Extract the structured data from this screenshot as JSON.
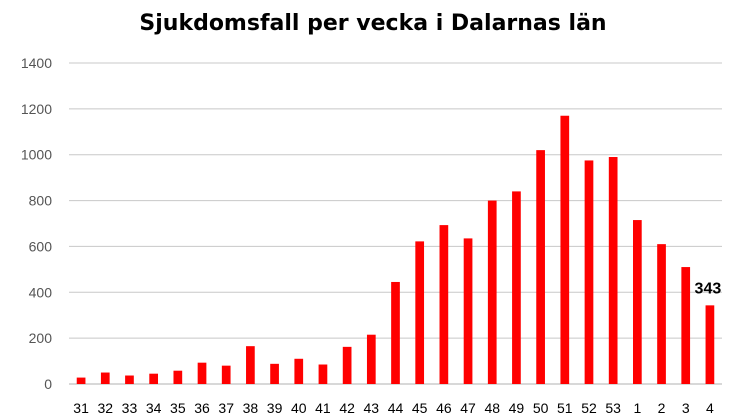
{
  "chart_data": {
    "type": "bar",
    "title": "Sjukdomsfall per vecka i Dalarnas län",
    "xlabel": "",
    "ylabel": "",
    "categories": [
      "31",
      "32",
      "33",
      "34",
      "35",
      "36",
      "37",
      "38",
      "39",
      "40",
      "41",
      "42",
      "43",
      "44",
      "45",
      "46",
      "47",
      "48",
      "49",
      "50",
      "51",
      "52",
      "53",
      "1",
      "2",
      "3",
      "4"
    ],
    "series": [
      {
        "values": [
          28,
          50,
          37,
          45,
          58,
          93,
          80,
          165,
          88,
          110,
          85,
          162,
          215,
          445,
          622,
          693,
          635,
          800,
          840,
          1020,
          1170,
          975,
          990,
          715,
          610,
          510,
          343
        ]
      }
    ],
    "ylim": [
      0,
      1400
    ],
    "yticks": [
      0,
      200,
      400,
      600,
      800,
      1000,
      1200,
      1400
    ],
    "grid": true,
    "legend": "none",
    "annotations": [
      {
        "category": "4",
        "text": "343"
      }
    ],
    "colors": {
      "bar": "#ff0000",
      "grid": "#c8c8c8",
      "text": "#000000"
    }
  }
}
